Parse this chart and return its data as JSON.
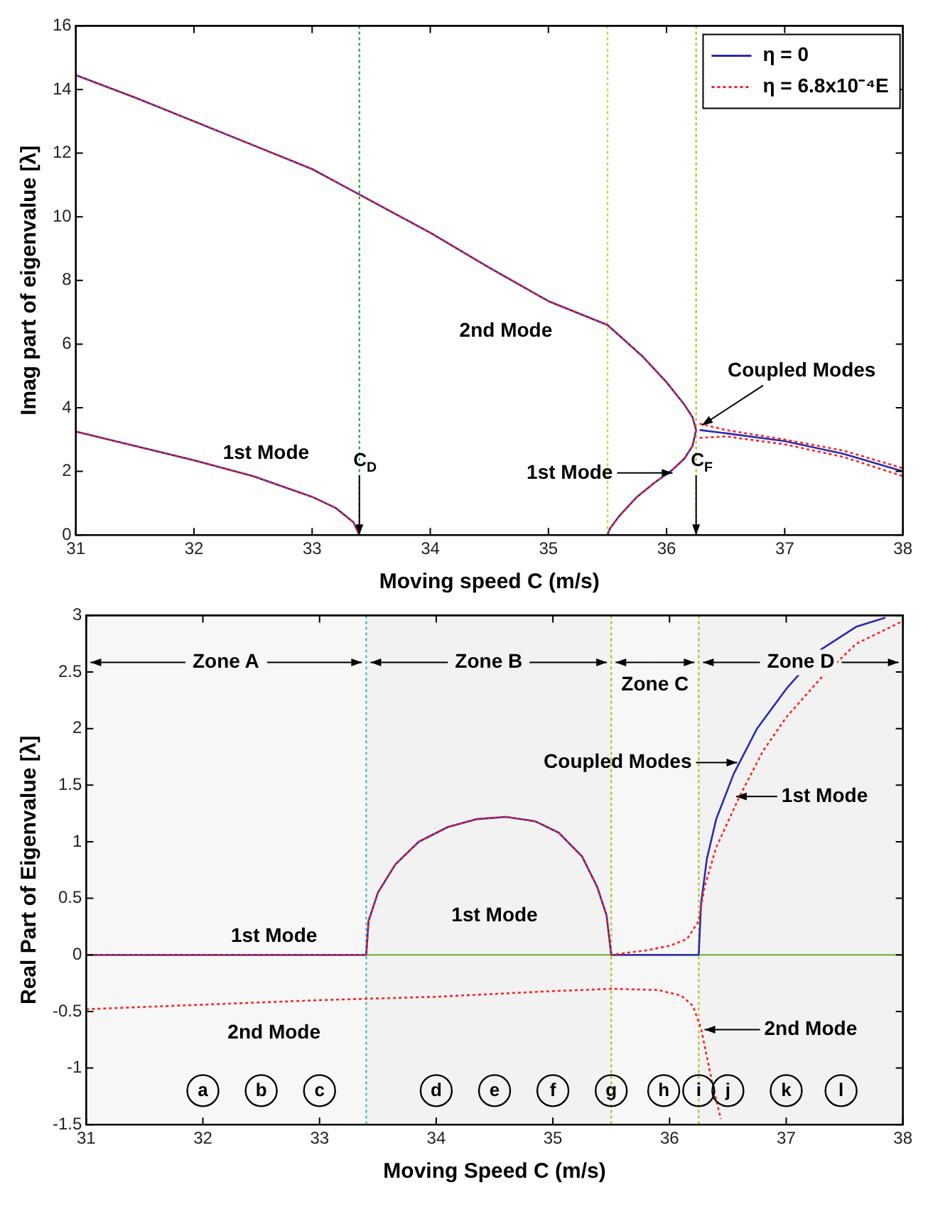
{
  "chart_data": [
    {
      "type": "line",
      "xlabel": "Moving speed C (m/s)",
      "ylabel": "Imag part of eigenvalue [λ]",
      "xlim": [
        31,
        38
      ],
      "xticks": [
        31,
        32,
        33,
        34,
        35,
        36,
        37,
        38
      ],
      "ylim": [
        0,
        16
      ],
      "yticks": [
        0,
        2,
        4,
        6,
        8,
        10,
        12,
        14,
        16
      ],
      "legend": "top right",
      "series": [
        {
          "name": "η = 0",
          "color": "#2b2bb0",
          "line_style": "solid",
          "x": [
            31,
            31.5,
            32,
            32.5,
            33,
            33.2,
            33.35,
            33.4,
            null,
            31,
            31.5,
            32,
            32.5,
            33,
            33.5,
            34,
            34.5,
            35,
            35.5,
            35.8,
            36,
            36.15,
            36.22,
            36.25,
            36.22,
            36.15,
            36.05,
            35.9,
            35.75,
            35.6,
            35.52,
            35.5,
            null,
            36.28,
            36.5,
            37,
            37.5,
            38
          ],
          "values": [
            3.25,
            2.8,
            2.35,
            1.85,
            1.2,
            0.85,
            0.4,
            0,
            null,
            14.45,
            13.75,
            13.0,
            12.25,
            11.5,
            10.5,
            9.5,
            8.4,
            7.35,
            6.6,
            5.6,
            4.8,
            4.1,
            3.7,
            3.3,
            2.8,
            2.4,
            2.05,
            1.65,
            1.2,
            0.6,
            0.2,
            0,
            null,
            3.3,
            3.2,
            2.95,
            2.55,
            2.0
          ]
        },
        {
          "name": "η = 6.8x10⁻⁴E",
          "color": "#ff2020",
          "line_style": "dotted",
          "x": [
            31,
            31.5,
            32,
            32.5,
            33,
            33.2,
            33.35,
            33.4,
            null,
            31,
            31.5,
            32,
            32.5,
            33,
            33.5,
            34,
            34.5,
            35,
            35.5,
            35.8,
            36,
            36.15,
            36.22,
            36.25,
            36.22,
            36.15,
            36.05,
            35.9,
            35.75,
            35.6,
            35.52,
            35.5,
            null,
            36.28,
            36.5,
            37,
            37.5,
            38,
            null,
            36.28,
            36.5,
            37,
            37.5,
            38
          ],
          "values": [
            3.25,
            2.8,
            2.35,
            1.85,
            1.2,
            0.85,
            0.4,
            0,
            null,
            14.45,
            13.75,
            13.0,
            12.25,
            11.5,
            10.5,
            9.5,
            8.4,
            7.35,
            6.6,
            5.6,
            4.8,
            4.1,
            3.7,
            3.3,
            2.8,
            2.4,
            2.05,
            1.65,
            1.2,
            0.6,
            0.2,
            0,
            null,
            3.5,
            3.3,
            3.0,
            2.65,
            2.1,
            null,
            3.05,
            3.1,
            2.85,
            2.45,
            1.85
          ]
        }
      ],
      "ref_lines": [
        {
          "axis": "x",
          "value": 33.4,
          "label": "C$_{D}$",
          "color": "#33aa55",
          "line_style": "dotted"
        },
        {
          "axis": "x",
          "value": 35.5,
          "color": "#c8d848",
          "line_style": "dotted"
        },
        {
          "axis": "x",
          "value": 36.25,
          "label": "C$_{F}$",
          "color": "#a8c830",
          "line_style": "dotted"
        }
      ],
      "annotations": [
        "2nd Mode",
        "1st Mode",
        {
          "text": "1st Mode",
          "x": 36.05,
          "y": 1.95
        },
        {
          "text": "Coupled Modes",
          "x": 36.3,
          "y": 3.45
        }
      ]
    },
    {
      "type": "line",
      "xlabel": "Moving Speed C (m/s)",
      "ylabel": "Real Part of Eigenvalue [λ]",
      "xlim": [
        31,
        38
      ],
      "xticks": [
        31,
        32,
        33,
        34,
        35,
        36,
        37,
        38
      ],
      "ylim": [
        -1.5,
        3
      ],
      "yticks": [
        -1.5,
        -1,
        -0.5,
        0,
        0.5,
        1,
        1.5,
        2,
        2.5,
        3
      ],
      "series": [
        {
          "color": "#2b2bb0",
          "line_style": "solid",
          "x": [
            31,
            33.4,
            33.42,
            33.5,
            33.65,
            33.85,
            34.1,
            34.35,
            34.6,
            34.85,
            35.05,
            35.25,
            35.38,
            35.46,
            35.5,
            36.25,
            36.27,
            36.32,
            36.4,
            36.55,
            36.75,
            37,
            37.3,
            37.6,
            37.85
          ],
          "values": [
            0,
            0,
            0.3,
            0.55,
            0.8,
            1.0,
            1.13,
            1.2,
            1.22,
            1.18,
            1.08,
            0.87,
            0.6,
            0.35,
            0,
            0,
            0.45,
            0.85,
            1.2,
            1.6,
            2.0,
            2.35,
            2.7,
            2.9,
            2.98
          ]
        },
        {
          "color": "#ff2020",
          "line_style": "dotted",
          "x": [
            31,
            33.4,
            33.42,
            33.5,
            33.65,
            33.85,
            34.1,
            34.35,
            34.6,
            34.85,
            35.05,
            35.25,
            35.38,
            35.46,
            35.5,
            35.8,
            36.0,
            36.15,
            36.25,
            36.3,
            36.4,
            36.6,
            36.8,
            37,
            37.3,
            37.6,
            38,
            null,
            31,
            32,
            33,
            34,
            35,
            35.5,
            35.9,
            36.1,
            36.2,
            36.27,
            36.32,
            36.38,
            36.44
          ],
          "values": [
            0,
            0,
            0.3,
            0.55,
            0.8,
            1.0,
            1.13,
            1.2,
            1.22,
            1.18,
            1.08,
            0.87,
            0.6,
            0.35,
            0,
            0.04,
            0.08,
            0.14,
            0.3,
            0.6,
            0.95,
            1.4,
            1.8,
            2.1,
            2.45,
            2.75,
            2.95,
            null,
            -0.48,
            -0.44,
            -0.4,
            -0.37,
            -0.32,
            -0.3,
            -0.31,
            -0.36,
            -0.45,
            -0.65,
            -0.9,
            -1.2,
            -1.45
          ]
        }
      ],
      "ref_lines": [
        {
          "axis": "y",
          "value": 0,
          "color": "#7cc04a",
          "line_style": "solid"
        },
        {
          "axis": "x",
          "value": 33.4,
          "color": "#55bbbb",
          "line_style": "dotted"
        },
        {
          "axis": "x",
          "value": 35.5,
          "color": "#a8c830",
          "line_style": "dotted"
        },
        {
          "axis": "x",
          "value": 36.25,
          "color": "#a8c830",
          "line_style": "dotted"
        }
      ],
      "bands": [
        {
          "axis": "x",
          "from": 31,
          "to": 33.4,
          "label": "Zone A",
          "color": "#f7f7f7"
        },
        {
          "axis": "x",
          "from": 33.4,
          "to": 35.5,
          "label": "Zone B",
          "color": "#f2f2f2"
        },
        {
          "axis": "x",
          "from": 35.5,
          "to": 36.25,
          "label": "Zone C",
          "color": "#f7f7f7"
        },
        {
          "axis": "x",
          "from": 36.25,
          "to": 38,
          "label": "Zone D",
          "color": "#f2f2f2"
        }
      ],
      "annotations": [
        "1st Mode",
        "1st Mode",
        "2nd Mode",
        {
          "text": "Coupled Modes",
          "x": 36.58,
          "y": 1.7
        },
        {
          "text": "1st Mode",
          "x": 36.57,
          "y": 1.4
        },
        {
          "text": "2nd Mode",
          "x": 36.3,
          "y": -0.66
        },
        {
          "text": "a",
          "x": 32,
          "y": -1.2
        },
        {
          "text": "b",
          "x": 32.5,
          "y": -1.2
        },
        {
          "text": "c",
          "x": 33,
          "y": -1.2
        },
        {
          "text": "d",
          "x": 34,
          "y": -1.2
        },
        {
          "text": "e",
          "x": 34.5,
          "y": -1.2
        },
        {
          "text": "f",
          "x": 35,
          "y": -1.2
        },
        {
          "text": "g",
          "x": 35.5,
          "y": -1.2
        },
        {
          "text": "h",
          "x": 35.95,
          "y": -1.2
        },
        {
          "text": "i",
          "x": 36.25,
          "y": -1.2
        },
        {
          "text": "j",
          "x": 36.5,
          "y": -1.2
        },
        {
          "text": "k",
          "x": 37,
          "y": -1.2
        },
        {
          "text": "l",
          "x": 37.47,
          "y": -1.2
        }
      ]
    }
  ]
}
